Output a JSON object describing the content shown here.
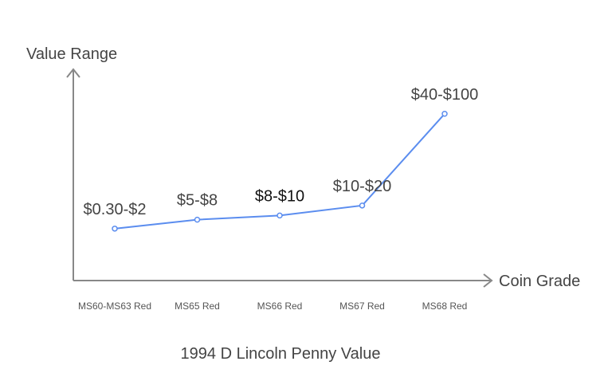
{
  "chart_data": {
    "type": "line",
    "title": "1994 D Lincoln Penny Value",
    "xlabel": "Coin Grade",
    "ylabel": "Value Range",
    "categories": [
      "MS60-MS63 Red",
      "MS65 Red",
      "MS66 Red",
      "MS67 Red",
      "MS68 Red"
    ],
    "series": [
      {
        "name": "Value",
        "color": "#5B8DEF",
        "values": [
          1.15,
          6.5,
          9,
          15,
          70
        ],
        "labels": [
          "$0.30-$2",
          "$5-$8",
          "$8-$10",
          "$10-$20",
          "$40-$100"
        ]
      }
    ],
    "ylim": [
      -30,
      100
    ],
    "grid": false,
    "legend": "none"
  }
}
